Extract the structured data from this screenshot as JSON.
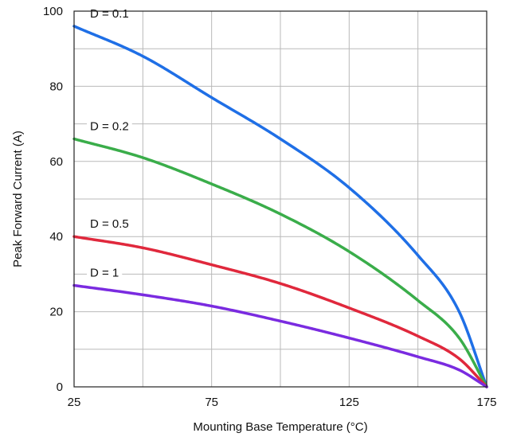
{
  "chart_data": {
    "type": "line",
    "xlabel": "Mounting Base Temperature (°C)",
    "ylabel": "Peak Forward Current (A)",
    "xlim": [
      25,
      175
    ],
    "ylim": [
      0,
      100
    ],
    "x_ticks": [
      25,
      75,
      125,
      175
    ],
    "y_ticks": [
      0,
      20,
      40,
      60,
      80,
      100
    ],
    "x_grid_step": 25,
    "y_grid_step": 10,
    "grid": true,
    "legend": "none",
    "series": [
      {
        "name": "D = 0.1",
        "color": "#1f6fe6",
        "x": [
          25,
          50,
          75,
          100,
          125,
          150,
          165,
          175
        ],
        "y": [
          96,
          88,
          77,
          66,
          53,
          35,
          20,
          0
        ]
      },
      {
        "name": "D = 0.2",
        "color": "#3aad4a",
        "x": [
          25,
          50,
          75,
          100,
          125,
          150,
          165,
          175
        ],
        "y": [
          66,
          61,
          54,
          46,
          36,
          23,
          13,
          0
        ]
      },
      {
        "name": "D = 0.5",
        "color": "#e0283c",
        "x": [
          25,
          50,
          75,
          100,
          125,
          150,
          165,
          175
        ],
        "y": [
          40,
          37,
          32.5,
          27.5,
          21,
          13.5,
          7.5,
          0
        ]
      },
      {
        "name": "D = 1",
        "color": "#7a2be0",
        "x": [
          25,
          50,
          75,
          100,
          125,
          150,
          165,
          175
        ],
        "y": [
          27,
          24.5,
          21.5,
          17.5,
          13,
          8,
          4.5,
          0
        ]
      }
    ]
  }
}
